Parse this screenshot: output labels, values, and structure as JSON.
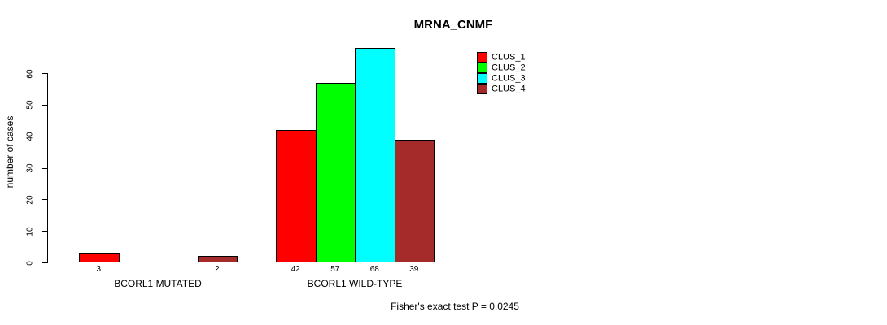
{
  "chart_data": {
    "type": "bar",
    "title": "MRNA_CNMF",
    "xlabel": "",
    "ylabel": "number of cases",
    "ylim": [
      0,
      60
    ],
    "yticks": [
      0,
      10,
      20,
      30,
      40,
      50,
      60
    ],
    "grid": false,
    "legend_position": "top-right",
    "annotation": "Fisher's exact test P = 0.0245",
    "categories": [
      "BCORL1 MUTATED",
      "BCORL1 WILD-TYPE"
    ],
    "series": [
      {
        "name": "CLUS_1",
        "color": "#FF0000",
        "values": [
          3,
          42
        ]
      },
      {
        "name": "CLUS_2",
        "color": "#00FF00",
        "values": [
          0,
          57
        ]
      },
      {
        "name": "CLUS_3",
        "color": "#00FFFF",
        "values": [
          0,
          68
        ]
      },
      {
        "name": "CLUS_4",
        "color": "#A52A2A",
        "values": [
          2,
          39
        ]
      }
    ]
  },
  "legend": {
    "items": [
      {
        "label": "CLUS_1",
        "color": "#FF0000"
      },
      {
        "label": "CLUS_2",
        "color": "#00FF00"
      },
      {
        "label": "CLUS_3",
        "color": "#00FFFF"
      },
      {
        "label": "CLUS_4",
        "color": "#A52A2A"
      }
    ]
  },
  "colors": {
    "axis": "#000000",
    "background": "#FFFFFF",
    "text": "#000000"
  }
}
